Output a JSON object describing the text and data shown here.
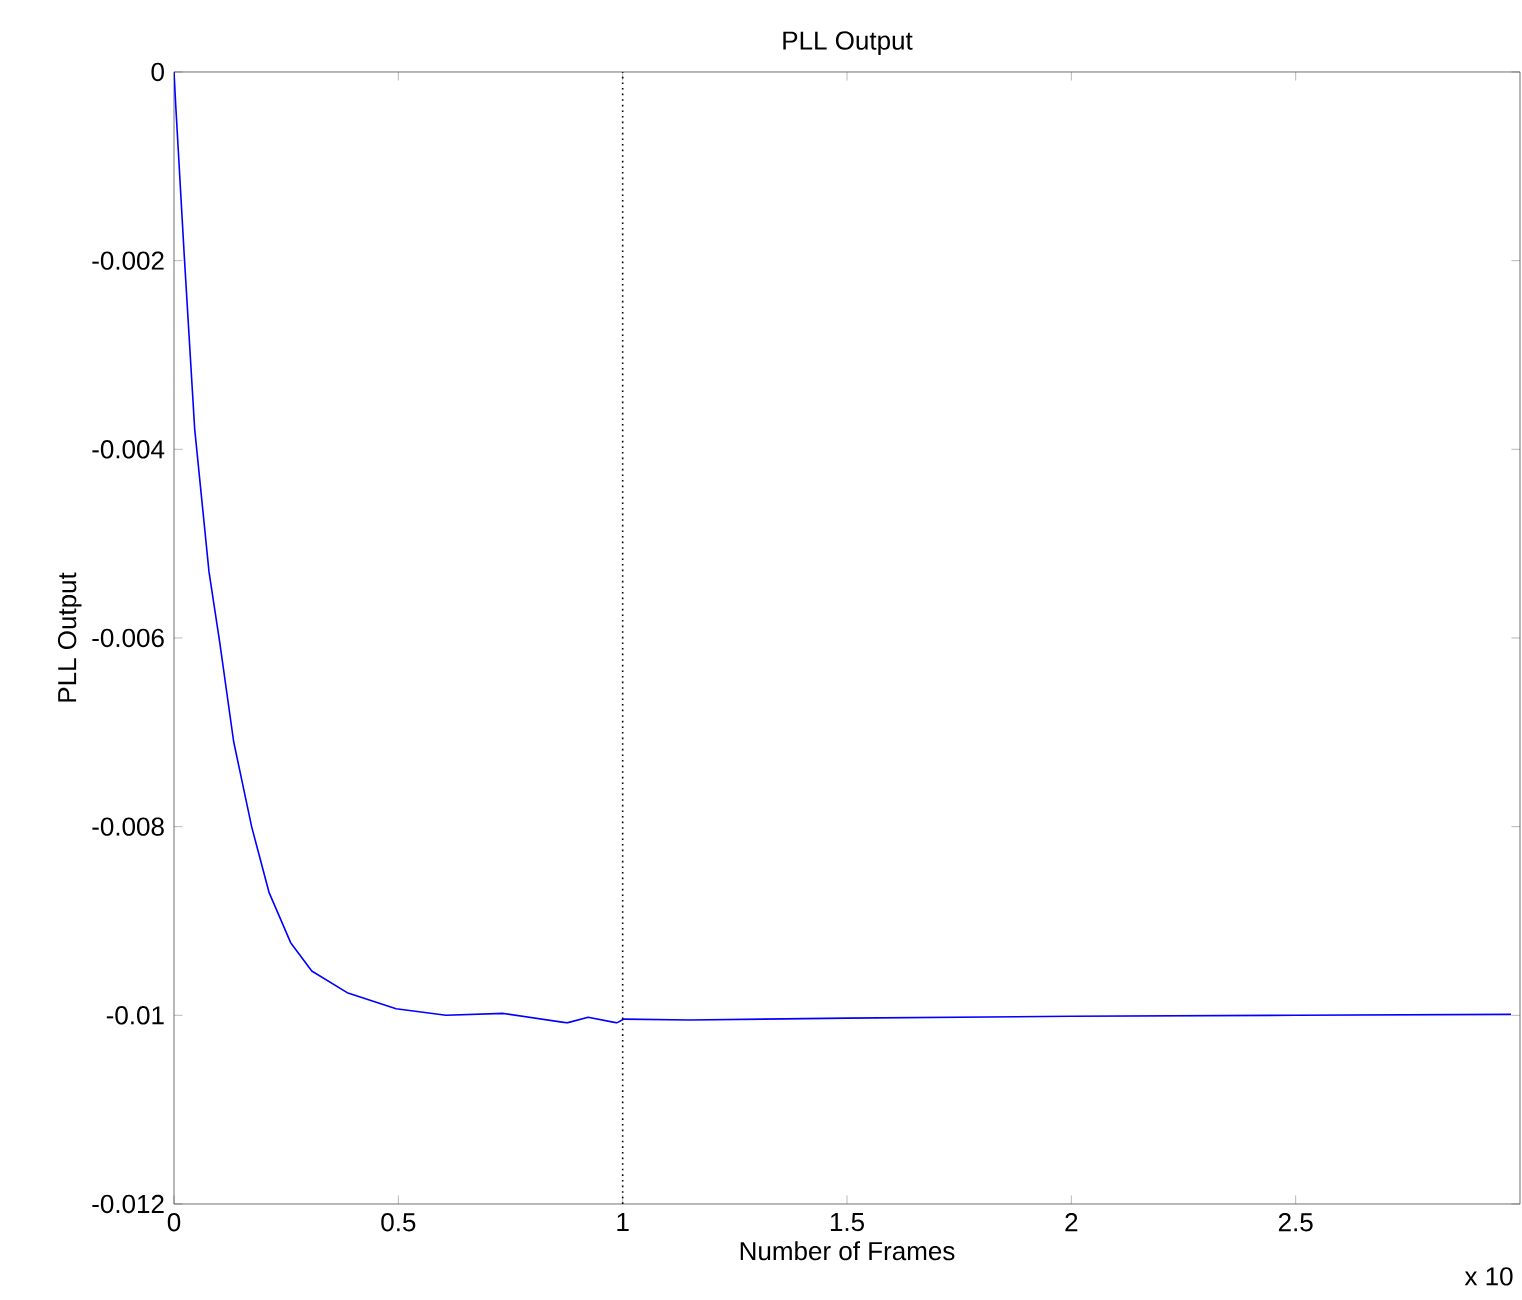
{
  "chart_data": {
    "type": "line",
    "title": "PLL Output",
    "xlabel": "Number of Frames",
    "ylabel": "PLL Output",
    "annotations": [
      "x 10"
    ],
    "x": [
      0,
      0.004,
      0.023,
      0.046,
      0.078,
      0.102,
      0.133,
      0.173,
      0.212,
      0.26,
      0.307,
      0.386,
      0.495,
      0.606,
      0.734,
      0.876,
      0.923,
      0.987,
      1.003,
      1.149,
      1.5,
      2.0,
      2.5,
      2.98
    ],
    "series": [
      {
        "color": "#0000ff",
        "values": [
          0,
          -0.00037,
          -0.00196,
          -0.00378,
          -0.0053,
          -0.00605,
          -0.0071,
          -0.008,
          -0.0087,
          -0.00923,
          -0.00953,
          -0.00976,
          -0.00993,
          -0.01,
          -0.00998,
          -0.01008,
          -0.01002,
          -0.01008,
          -0.01004,
          -0.01005,
          -0.01003,
          -0.01001,
          -0.01,
          -0.00999
        ]
      }
    ],
    "xlim": [
      0,
      3
    ],
    "xticks": [
      0,
      0.5,
      1,
      1.5,
      2,
      2.5
    ],
    "ylim": [
      -0.012,
      0
    ],
    "yticks": [
      -0.012,
      -0.01,
      -0.008,
      -0.006,
      -0.004,
      -0.002,
      0
    ],
    "ref_lines": [
      {
        "axis": "x",
        "value": 1,
        "color": "#000000",
        "line_style": "dotted"
      }
    ],
    "grid": false,
    "marker": "none",
    "line_style": "solid"
  }
}
